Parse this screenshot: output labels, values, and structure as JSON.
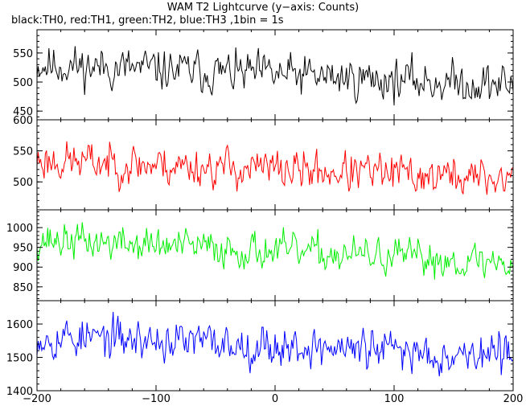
{
  "chart_data": {
    "type": "line",
    "title": "WAM T2 Lightcurve (y−axis: Counts)",
    "subtitle": "black:TH0, red:TH1, green:TH2, blue:TH3 ,1bin = 1s",
    "xlim": [
      -200,
      200
    ],
    "x_ticks": [
      -200,
      -100,
      0,
      100,
      200
    ],
    "x_tick_labels": [
      "−200",
      "−100",
      "0",
      "100",
      "200"
    ],
    "bin_seconds": 1,
    "panels": [
      {
        "series": "TH0",
        "color": "#000000",
        "ylim": [
          435,
          590
        ],
        "y_ticks": [
          450,
          500,
          550
        ],
        "y_tick_labels": [
          "450",
          "500",
          "550"
        ],
        "trend_start": 530,
        "trend_end": 495,
        "noise": 22,
        "seed": 11
      },
      {
        "series": "TH1",
        "color": "#ff0000",
        "ylim": [
          455,
          600
        ],
        "y_ticks": [
          500,
          550,
          600
        ],
        "y_tick_labels": [
          "500",
          "550",
          "600"
        ],
        "trend_start": 535,
        "trend_end": 505,
        "noise": 20,
        "seed": 23
      },
      {
        "series": "TH2",
        "color": "#00ee00",
        "ylim": [
          815,
          1045
        ],
        "y_ticks": [
          850,
          900,
          950,
          1000
        ],
        "y_tick_labels": [
          "850",
          "900",
          "950",
          "1000"
        ],
        "trend_start": 970,
        "trend_end": 910,
        "noise": 28,
        "seed": 37
      },
      {
        "series": "TH3",
        "color": "#0000ff",
        "ylim": [
          1400,
          1670
        ],
        "y_ticks": [
          1400,
          1500,
          1600
        ],
        "y_tick_labels": [
          "1400",
          "1500",
          "1600"
        ],
        "trend_start": 1565,
        "trend_end": 1505,
        "noise": 38,
        "seed": 53
      }
    ]
  }
}
